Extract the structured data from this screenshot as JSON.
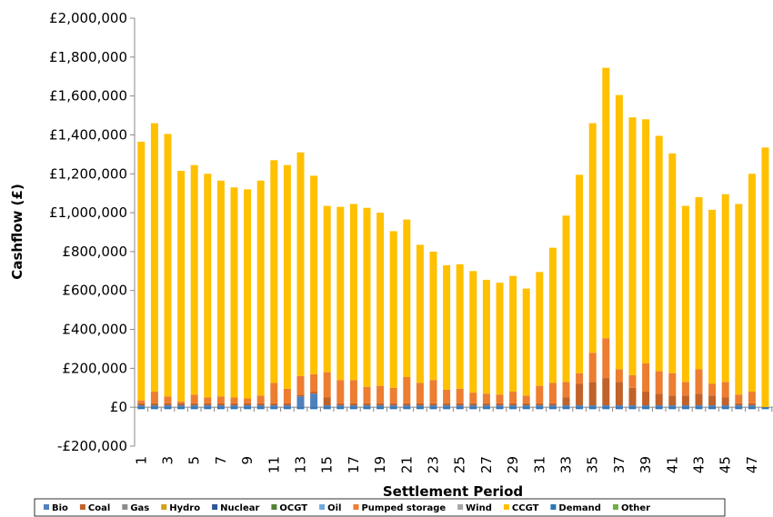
{
  "chart_data": {
    "type": "bar",
    "stacked": true,
    "y_label": "Cashflow (£)",
    "x_label": "Settlement Period",
    "categories": [
      1,
      null,
      3,
      null,
      5,
      null,
      7,
      null,
      9,
      null,
      11,
      null,
      13,
      null,
      15,
      null,
      17,
      null,
      19,
      null,
      21,
      null,
      23,
      null,
      25,
      null,
      27,
      null,
      29,
      null,
      31,
      null,
      33,
      null,
      35,
      null,
      37,
      null,
      39,
      null,
      41,
      null,
      43,
      null,
      45,
      null,
      47,
      null
    ],
    "ylim": [
      -200000,
      2000000
    ],
    "yticks": [
      {
        "value": -200000,
        "label": "-£200,000"
      },
      {
        "value": 0,
        "label": "£0"
      },
      {
        "value": 200000,
        "label": "£200,000"
      },
      {
        "value": 400000,
        "label": "£400,000"
      },
      {
        "value": 600000,
        "label": "£600,000"
      },
      {
        "value": 800000,
        "label": "£800,000"
      },
      {
        "value": 1000000,
        "label": "£1,000,000"
      },
      {
        "value": 1200000,
        "label": "£1,200,000"
      },
      {
        "value": 1400000,
        "label": "£1,400,000"
      },
      {
        "value": 1600000,
        "label": "£1,600,000"
      },
      {
        "value": 1800000,
        "label": "£1,800,000"
      },
      {
        "value": 2000000,
        "label": "£2,000,000"
      }
    ],
    "series": [
      {
        "name": "Bio",
        "color": "#4f81bd",
        "values": [
          10000,
          10000,
          10000,
          10000,
          10000,
          10000,
          10000,
          10000,
          10000,
          10000,
          10000,
          10000,
          55000,
          70000,
          10000,
          10000,
          10000,
          10000,
          10000,
          10000,
          10000,
          10000,
          10000,
          10000,
          10000,
          10000,
          10000,
          10000,
          10000,
          10000,
          10000,
          10000,
          10000,
          10000,
          10000,
          10000,
          10000,
          10000,
          10000,
          10000,
          10000,
          10000,
          10000,
          10000,
          10000,
          10000,
          10000,
          0
        ]
      },
      {
        "name": "Coal",
        "color": "#c0622a",
        "values": [
          10000,
          10000,
          10000,
          10000,
          10000,
          10000,
          10000,
          10000,
          10000,
          10000,
          10000,
          10000,
          10000,
          10000,
          40000,
          10000,
          10000,
          10000,
          10000,
          10000,
          10000,
          10000,
          10000,
          10000,
          10000,
          10000,
          10000,
          10000,
          10000,
          10000,
          10000,
          10000,
          40000,
          110000,
          120000,
          140000,
          120000,
          90000,
          70000,
          60000,
          50000,
          50000,
          60000,
          50000,
          40000,
          10000,
          10000,
          0
        ]
      },
      {
        "name": "Gas",
        "color": "#8c8c8c",
        "values": [
          0,
          0,
          0,
          0,
          0,
          0,
          0,
          0,
          0,
          0,
          0,
          0,
          0,
          0,
          0,
          0,
          0,
          0,
          0,
          0,
          0,
          0,
          0,
          0,
          0,
          0,
          0,
          0,
          0,
          0,
          0,
          0,
          0,
          0,
          0,
          0,
          0,
          0,
          0,
          0,
          0,
          0,
          0,
          0,
          0,
          0,
          0,
          0
        ]
      },
      {
        "name": "Hydro",
        "color": "#d4a017",
        "values": [
          0,
          0,
          0,
          0,
          0,
          0,
          0,
          0,
          0,
          0,
          0,
          0,
          0,
          0,
          0,
          0,
          0,
          0,
          0,
          0,
          0,
          0,
          0,
          0,
          0,
          0,
          0,
          0,
          0,
          0,
          0,
          0,
          0,
          0,
          0,
          0,
          0,
          0,
          0,
          0,
          0,
          0,
          0,
          0,
          0,
          0,
          0,
          0
        ]
      },
      {
        "name": "Nuclear",
        "color": "#2f5597",
        "values": [
          0,
          0,
          0,
          0,
          0,
          0,
          0,
          0,
          0,
          0,
          0,
          0,
          0,
          0,
          0,
          0,
          0,
          0,
          0,
          0,
          0,
          0,
          0,
          0,
          0,
          0,
          0,
          0,
          0,
          0,
          0,
          0,
          0,
          0,
          0,
          0,
          0,
          0,
          0,
          0,
          0,
          0,
          0,
          0,
          0,
          0,
          0,
          0
        ]
      },
      {
        "name": "OCGT",
        "color": "#548235",
        "values": [
          0,
          0,
          0,
          0,
          0,
          0,
          0,
          0,
          0,
          0,
          0,
          0,
          0,
          0,
          0,
          0,
          0,
          0,
          0,
          0,
          0,
          0,
          0,
          0,
          0,
          0,
          0,
          0,
          0,
          0,
          0,
          0,
          0,
          0,
          0,
          0,
          0,
          0,
          0,
          0,
          0,
          0,
          0,
          0,
          0,
          0,
          0,
          0
        ]
      },
      {
        "name": "Oil",
        "color": "#6fa8dc",
        "values": [
          0,
          0,
          0,
          0,
          0,
          0,
          0,
          0,
          0,
          0,
          0,
          0,
          0,
          0,
          0,
          0,
          0,
          0,
          0,
          0,
          0,
          0,
          0,
          0,
          0,
          0,
          0,
          0,
          0,
          0,
          0,
          0,
          0,
          0,
          0,
          0,
          0,
          0,
          0,
          0,
          0,
          0,
          0,
          0,
          0,
          0,
          0,
          0
        ]
      },
      {
        "name": "Pumped storage",
        "color": "#ed7d31",
        "values": [
          15000,
          60000,
          35000,
          10000,
          45000,
          30000,
          35000,
          30000,
          25000,
          40000,
          105000,
          75000,
          95000,
          90000,
          130000,
          120000,
          120000,
          85000,
          90000,
          80000,
          135000,
          105000,
          120000,
          70000,
          75000,
          55000,
          50000,
          45000,
          60000,
          40000,
          90000,
          105000,
          80000,
          55000,
          150000,
          205000,
          65000,
          65000,
          145000,
          115000,
          115000,
          70000,
          125000,
          60000,
          80000,
          45000,
          60000,
          0
        ]
      },
      {
        "name": "Wind",
        "color": "#a5a5a5",
        "values": [
          0,
          0,
          0,
          0,
          0,
          0,
          0,
          0,
          0,
          0,
          0,
          0,
          0,
          0,
          0,
          0,
          0,
          0,
          0,
          0,
          0,
          0,
          0,
          0,
          0,
          0,
          0,
          0,
          0,
          0,
          0,
          0,
          0,
          0,
          0,
          0,
          0,
          0,
          0,
          0,
          0,
          0,
          0,
          0,
          0,
          0,
          0,
          0
        ]
      },
      {
        "name": "CCGT",
        "color": "#ffc000",
        "values": [
          1330000,
          1380000,
          1350000,
          1185000,
          1180000,
          1150000,
          1110000,
          1080000,
          1075000,
          1105000,
          1145000,
          1150000,
          1150000,
          1020000,
          855000,
          890000,
          905000,
          920000,
          890000,
          805000,
          810000,
          710000,
          660000,
          640000,
          640000,
          625000,
          585000,
          575000,
          595000,
          550000,
          585000,
          695000,
          855000,
          1020000,
          1180000,
          1390000,
          1410000,
          1325000,
          1255000,
          1210000,
          1130000,
          905000,
          885000,
          895000,
          965000,
          980000,
          1120000,
          1335000
        ]
      },
      {
        "name": "Demand",
        "color": "#2e75b6",
        "values": [
          -10000,
          -10000,
          -10000,
          -10000,
          -10000,
          -10000,
          -10000,
          -10000,
          -10000,
          -10000,
          -10000,
          -10000,
          -10000,
          -10000,
          -10000,
          -10000,
          -10000,
          -10000,
          -10000,
          -10000,
          -10000,
          -10000,
          -10000,
          -10000,
          -10000,
          -10000,
          -10000,
          -10000,
          -10000,
          -10000,
          -10000,
          -10000,
          -10000,
          -10000,
          -10000,
          -10000,
          -10000,
          -10000,
          -10000,
          -10000,
          -10000,
          -10000,
          -10000,
          -10000,
          -10000,
          -10000,
          -10000,
          -10000
        ]
      },
      {
        "name": "Other",
        "color": "#70ad47",
        "values": [
          0,
          0,
          0,
          0,
          0,
          0,
          0,
          0,
          0,
          0,
          0,
          0,
          0,
          0,
          0,
          0,
          0,
          0,
          0,
          0,
          0,
          0,
          0,
          0,
          0,
          0,
          0,
          0,
          0,
          0,
          0,
          0,
          0,
          0,
          0,
          0,
          0,
          0,
          0,
          0,
          0,
          0,
          0,
          0,
          0,
          0,
          0,
          0
        ]
      }
    ]
  }
}
